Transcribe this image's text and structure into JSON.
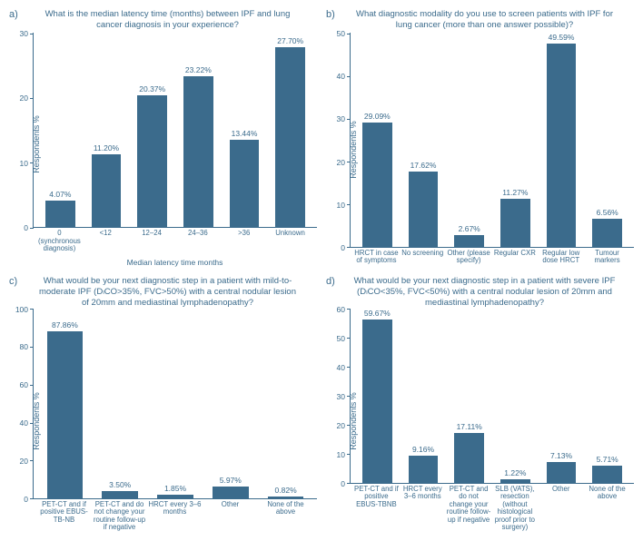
{
  "colors": {
    "bar": "#3b6b8c",
    "text": "#3b6b8c",
    "axis": "#3b6b8c",
    "background": "#ffffff"
  },
  "ylabel_common": "Respondents %",
  "panels": {
    "a": {
      "label": "a)",
      "title": "What is the median latency time (months) between IPF and lung cancer diagnosis in your experience?",
      "ymax": 30,
      "ystep": 10,
      "yticks": [
        0,
        10,
        20,
        30
      ],
      "xaxis_title": "Median latency time months",
      "categories": [
        "0 (synchronous diagnosis)",
        "<12",
        "12–24",
        "24–36",
        ">36",
        "Unknown"
      ],
      "values": [
        4.07,
        11.2,
        20.37,
        23.22,
        13.44,
        27.7
      ],
      "value_labels": [
        "4.07%",
        "11.20%",
        "20.37%",
        "23.22%",
        "13.44%",
        "27.70%"
      ]
    },
    "b": {
      "label": "b)",
      "title": "What diagnostic modality do you use to screen patients with IPF for lung cancer (more than one answer possible)?",
      "ymax": 50,
      "ystep": 10,
      "yticks": [
        0,
        10,
        20,
        30,
        40,
        50
      ],
      "xaxis_title": "",
      "categories": [
        "HRCT in case of symptoms",
        "No screening",
        "Other (please specify)",
        "Regular CXR",
        "Regular low dose HRCT",
        "Tumour markers"
      ],
      "values": [
        29.09,
        17.62,
        2.67,
        11.27,
        49.59,
        6.56
      ],
      "value_labels": [
        "29.09%",
        "17.62%",
        "2.67%",
        "11.27%",
        "49.59%",
        "6.56%"
      ]
    },
    "c": {
      "label": "c)",
      "title": "What would be your next diagnostic step in a patient with mild-to-moderate IPF (DₗCO>35%, FVC>50%) with a central nodular lesion of 20mm and mediastinal lymphadenopathy?",
      "ymax": 100,
      "ystep": 20,
      "yticks": [
        0,
        20,
        40,
        60,
        80,
        100
      ],
      "xaxis_title": "",
      "categories": [
        "PET-CT and if positive EBUS-TB-NB",
        "PET-CT and do not change your routine follow-up if negative",
        "HRCT every 3–6 months",
        "Other",
        "None of the above"
      ],
      "values": [
        87.86,
        3.5,
        1.85,
        5.97,
        0.82
      ],
      "value_labels": [
        "87.86%",
        "3.50%",
        "1.85%",
        "5.97%",
        "0.82%"
      ]
    },
    "d": {
      "label": "d)",
      "title": "What would be your next diagnostic step in a patient with severe IPF (DₗCO<35%, FVC<50%) with a central nodular lesion of 20mm and mediastinal lymphadenopathy?",
      "ymax": 60,
      "ystep": 10,
      "yticks": [
        0,
        10,
        20,
        30,
        40,
        50,
        60
      ],
      "xaxis_title": "",
      "categories": [
        "PET-CT and if positive EBUS-TBNB",
        "HRCT every 3–6 months",
        "PET-CT and do not change your routine follow-up if negative",
        "SLB (VATS), resection (without histological proof prior to surgery)",
        "Other",
        "None of the above"
      ],
      "values": [
        59.67,
        9.16,
        17.11,
        1.22,
        7.13,
        5.71
      ],
      "value_labels": [
        "59.67%",
        "9.16%",
        "17.11%",
        "1.22%",
        "7.13%",
        "5.71%"
      ]
    }
  }
}
